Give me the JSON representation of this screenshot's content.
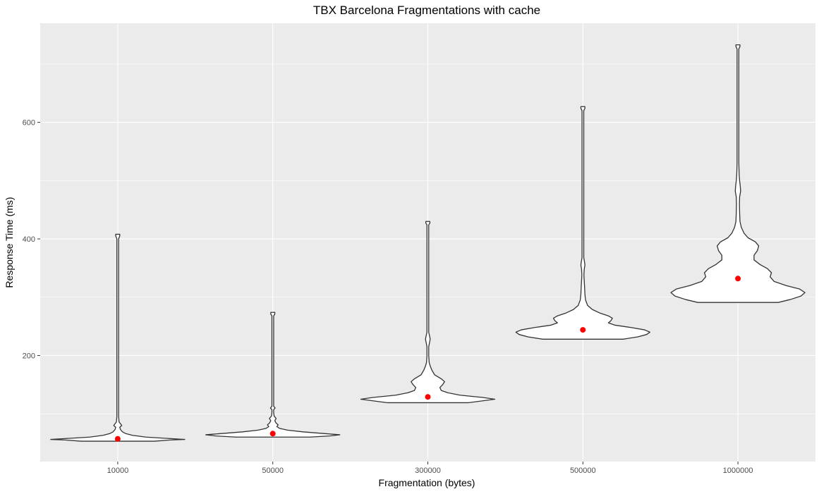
{
  "chart_data": {
    "type": "violin",
    "title": "TBX Barcelona Fragmentations with cache",
    "xlabel": "Fragmentation (bytes)",
    "ylabel": "Response Time (ms)",
    "categories": [
      "10000",
      "50000",
      "300000",
      "500000",
      "1000000"
    ],
    "ylim": [
      18,
      770
    ],
    "yticks": [
      200,
      400,
      600
    ],
    "ytick_labels": [
      "200",
      "400",
      "600"
    ],
    "grid": true,
    "panel_background": "#EBEBEB",
    "grid_color": "#FFFFFF",
    "violin_fill": "#FFFFFF",
    "violin_stroke": "#333333",
    "mean_color": "#FF0000",
    "means": [
      57,
      66,
      129,
      244,
      332
    ],
    "violins": [
      {
        "category": "10000",
        "min": 53,
        "max": 408,
        "profile": [
          [
            53,
            0.55
          ],
          [
            55,
            0.78
          ],
          [
            56,
            1.0
          ],
          [
            58,
            0.7
          ],
          [
            60,
            0.42
          ],
          [
            63,
            0.22
          ],
          [
            66,
            0.12
          ],
          [
            69,
            0.07
          ],
          [
            73,
            0.04
          ],
          [
            77,
            0.03
          ],
          [
            80,
            0.06
          ],
          [
            83,
            0.04
          ],
          [
            86,
            0.02
          ],
          [
            95,
            0.013
          ],
          [
            150,
            0.013
          ],
          [
            300,
            0.013
          ],
          [
            400,
            0.013
          ],
          [
            405,
            0.03
          ],
          [
            408,
            0.03
          ]
        ]
      },
      {
        "category": "50000",
        "min": 60,
        "max": 274,
        "profile": [
          [
            60,
            0.55
          ],
          [
            62,
            0.85
          ],
          [
            64,
            1.0
          ],
          [
            66,
            0.78
          ],
          [
            69,
            0.45
          ],
          [
            72,
            0.22
          ],
          [
            75,
            0.1
          ],
          [
            78,
            0.06
          ],
          [
            81,
            0.08
          ],
          [
            84,
            0.05
          ],
          [
            88,
            0.03
          ],
          [
            92,
            0.05
          ],
          [
            96,
            0.02
          ],
          [
            102,
            0.013
          ],
          [
            107,
            0.013
          ],
          [
            110,
            0.035
          ],
          [
            113,
            0.013
          ],
          [
            150,
            0.013
          ],
          [
            200,
            0.013
          ],
          [
            268,
            0.013
          ],
          [
            271,
            0.03
          ],
          [
            274,
            0.03
          ]
        ]
      },
      {
        "category": "300000",
        "min": 119,
        "max": 430,
        "profile": [
          [
            119,
            0.6
          ],
          [
            122,
            0.8
          ],
          [
            125,
            1.0
          ],
          [
            128,
            0.82
          ],
          [
            132,
            0.48
          ],
          [
            136,
            0.3
          ],
          [
            140,
            0.2
          ],
          [
            145,
            0.18
          ],
          [
            150,
            0.22
          ],
          [
            155,
            0.25
          ],
          [
            160,
            0.2
          ],
          [
            167,
            0.1
          ],
          [
            175,
            0.06
          ],
          [
            182,
            0.035
          ],
          [
            188,
            0.02
          ],
          [
            200,
            0.013
          ],
          [
            215,
            0.013
          ],
          [
            222,
            0.025
          ],
          [
            228,
            0.035
          ],
          [
            234,
            0.025
          ],
          [
            240,
            0.013
          ],
          [
            300,
            0.013
          ],
          [
            400,
            0.013
          ],
          [
            424,
            0.013
          ],
          [
            427,
            0.03
          ],
          [
            430,
            0.03
          ]
        ]
      },
      {
        "category": "500000",
        "min": 228,
        "max": 627,
        "profile": [
          [
            228,
            0.6
          ],
          [
            232,
            0.82
          ],
          [
            236,
            0.95
          ],
          [
            240,
            1.0
          ],
          [
            244,
            0.92
          ],
          [
            248,
            0.72
          ],
          [
            252,
            0.48
          ],
          [
            256,
            0.38
          ],
          [
            260,
            0.42
          ],
          [
            264,
            0.44
          ],
          [
            268,
            0.38
          ],
          [
            273,
            0.25
          ],
          [
            279,
            0.14
          ],
          [
            286,
            0.07
          ],
          [
            295,
            0.04
          ],
          [
            305,
            0.03
          ],
          [
            318,
            0.025
          ],
          [
            328,
            0.02
          ],
          [
            338,
            0.015
          ],
          [
            348,
            0.02
          ],
          [
            355,
            0.03
          ],
          [
            360,
            0.025
          ],
          [
            368,
            0.013
          ],
          [
            400,
            0.013
          ],
          [
            500,
            0.013
          ],
          [
            620,
            0.013
          ],
          [
            624,
            0.03
          ],
          [
            627,
            0.03
          ]
        ]
      },
      {
        "category": "1000000",
        "min": 291,
        "max": 733,
        "profile": [
          [
            291,
            0.6
          ],
          [
            296,
            0.78
          ],
          [
            302,
            0.94
          ],
          [
            308,
            1.0
          ],
          [
            314,
            0.92
          ],
          [
            320,
            0.72
          ],
          [
            327,
            0.54
          ],
          [
            335,
            0.48
          ],
          [
            342,
            0.5
          ],
          [
            349,
            0.44
          ],
          [
            356,
            0.33
          ],
          [
            364,
            0.24
          ],
          [
            372,
            0.24
          ],
          [
            380,
            0.29
          ],
          [
            388,
            0.31
          ],
          [
            395,
            0.26
          ],
          [
            402,
            0.15
          ],
          [
            410,
            0.09
          ],
          [
            420,
            0.05
          ],
          [
            430,
            0.03
          ],
          [
            445,
            0.025
          ],
          [
            460,
            0.022
          ],
          [
            472,
            0.025
          ],
          [
            482,
            0.04
          ],
          [
            490,
            0.035
          ],
          [
            500,
            0.025
          ],
          [
            510,
            0.018
          ],
          [
            530,
            0.013
          ],
          [
            600,
            0.013
          ],
          [
            700,
            0.013
          ],
          [
            726,
            0.013
          ],
          [
            730,
            0.03
          ],
          [
            733,
            0.03
          ]
        ]
      }
    ]
  }
}
